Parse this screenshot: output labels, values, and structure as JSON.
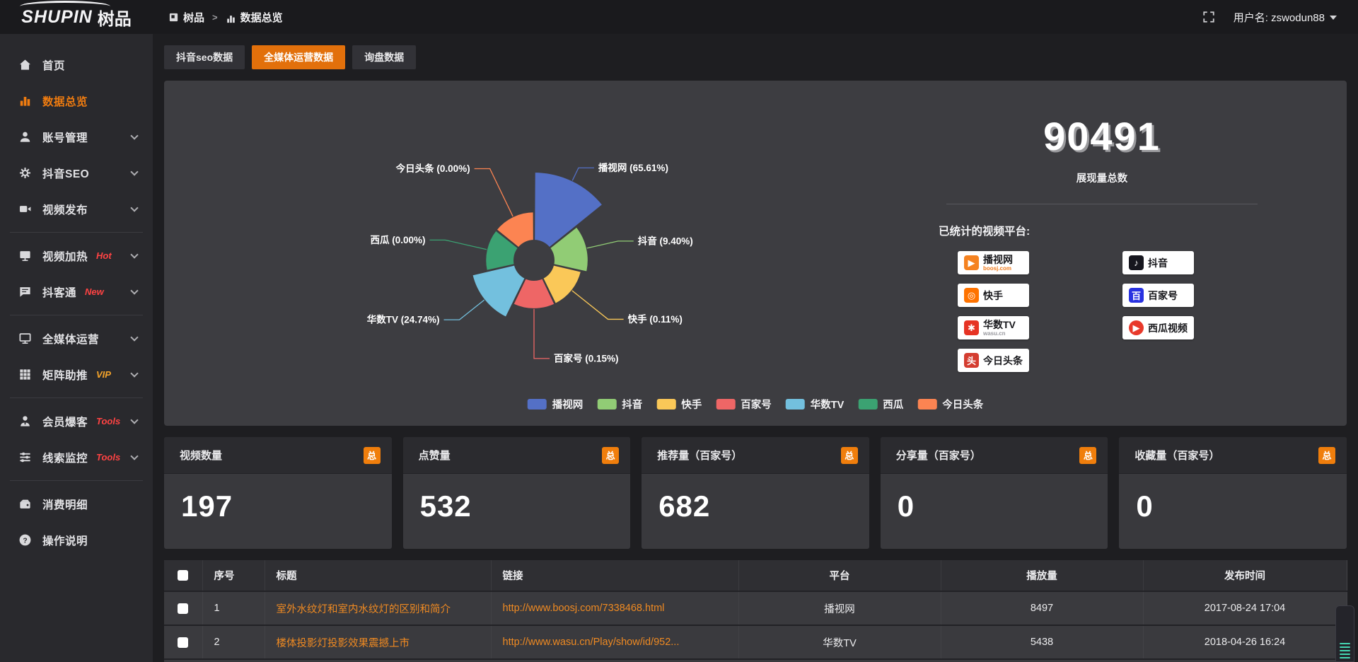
{
  "accent_color": "#e2700b",
  "brand": {
    "logo_text": "SHUPIN",
    "logo_cn": "树品"
  },
  "topbar": {
    "breadcrumb": [
      {
        "label": "树品",
        "icon": "app-icon"
      },
      {
        "label": "数据总览",
        "icon": "bar-chart-icon"
      }
    ],
    "separator": ">",
    "username": "用户名: zswodun88"
  },
  "sidebar": {
    "items": [
      {
        "label": "首页",
        "icon": "home-icon"
      },
      {
        "label": "数据总览",
        "icon": "bar-chart-icon",
        "active": true
      },
      {
        "label": "账号管理",
        "icon": "user-icon",
        "chevron": true
      },
      {
        "label": "抖音SEO",
        "icon": "gear-icon",
        "chevron": true
      },
      {
        "label": "视频发布",
        "icon": "video-icon",
        "chevron": true
      },
      {
        "divider": true
      },
      {
        "label": "视频加热",
        "icon": "screen-play-icon",
        "tag": "Hot",
        "tag_color": "#ff4343",
        "chevron": true
      },
      {
        "label": "抖客通",
        "icon": "chat-icon",
        "tag": "New",
        "tag_color": "#ff4343",
        "chevron": true
      },
      {
        "divider": true
      },
      {
        "label": "全媒体运营",
        "icon": "monitor-icon",
        "chevron": true
      },
      {
        "label": "矩阵助推",
        "icon": "grid-icon",
        "tag": "VIP",
        "tag_color": "#f5a42a",
        "chevron": true
      },
      {
        "divider": true
      },
      {
        "label": "会员爆客",
        "icon": "member-icon",
        "tag": "Tools",
        "tag_color": "#ff4343",
        "chevron": true
      },
      {
        "label": "线索监控",
        "icon": "sliders-icon",
        "tag": "Tools",
        "tag_color": "#ff4343",
        "chevron": true
      },
      {
        "divider": true
      },
      {
        "label": "消费明细",
        "icon": "wallet-icon"
      },
      {
        "label": "操作说明",
        "icon": "help-icon"
      }
    ]
  },
  "tabs": [
    {
      "label": "抖音seo数据",
      "active": false
    },
    {
      "label": "全媒体运营数据",
      "active": true
    },
    {
      "label": "询盘数据",
      "active": false
    }
  ],
  "chart_data": {
    "type": "pie",
    "variant": "nightingale-rose-donut",
    "categories": [
      "播视网",
      "抖音",
      "快手",
      "百家号",
      "华数TV",
      "西瓜",
      "今日头条"
    ],
    "values_percent": [
      65.61,
      9.4,
      0.11,
      0.15,
      24.74,
      0.0,
      0.0
    ],
    "labels": [
      "播视网 (65.61%)",
      "抖音 (9.40%)",
      "快手 (0.11%)",
      "百家号 (0.15%)",
      "华数TV (24.74%)",
      "西瓜 (0.00%)",
      "今日头条 (0.00%)"
    ],
    "colors": [
      "#5470c6",
      "#91cc75",
      "#fac858",
      "#ee6666",
      "#73c0de",
      "#3ba272",
      "#fc8452"
    ],
    "legend_position": "bottom",
    "title": ""
  },
  "summary": {
    "total_value": "90491",
    "total_label": "展现量总数",
    "platforms_title": "已统计的视频平台:",
    "platforms": [
      {
        "name": "播视网",
        "subtext": "boosj.com",
        "subtext_color": "#f07c1e",
        "icon": "boosj-logo",
        "glyph": "▶",
        "bg": "#f58220",
        "fg": "#fff",
        "round": false
      },
      {
        "name": "快手",
        "icon": "kuaishou-logo",
        "glyph": "◎",
        "bg": "#ff7300",
        "fg": "#fff",
        "round": false
      },
      {
        "name": "华数TV",
        "subtext": "wasu.cn",
        "subtext_color": "#9a9aa0",
        "icon": "wasu-logo",
        "glyph": "✱",
        "bg": "#e63324",
        "fg": "#fff",
        "round": false
      },
      {
        "name": "今日头条",
        "icon": "toutiao-logo",
        "glyph": "头",
        "bg": "#d43d30",
        "fg": "#fff",
        "round": false
      },
      {
        "name": "抖音",
        "icon": "douyin-logo",
        "glyph": "♪",
        "bg": "#16161e",
        "fg": "#fff",
        "round": false
      },
      {
        "name": "百家号",
        "icon": "baijiahao-logo",
        "glyph": "百",
        "bg": "#2932e1",
        "fg": "#fff",
        "round": false
      },
      {
        "name": "西瓜视频",
        "icon": "xigua-logo",
        "glyph": "▶",
        "bg": "#e8392b",
        "fg": "#fff",
        "round": true
      }
    ]
  },
  "stat_cards": [
    {
      "label": "视频数量",
      "badge": "总",
      "value": "197"
    },
    {
      "label": "点赞量",
      "badge": "总",
      "value": "532"
    },
    {
      "label": "推荐量（百家号）",
      "badge": "总",
      "value": "682"
    },
    {
      "label": "分享量（百家号）",
      "badge": "总",
      "value": "0"
    },
    {
      "label": "收藏量（百家号）",
      "badge": "总",
      "value": "0"
    }
  ],
  "table": {
    "columns": [
      "",
      "序号",
      "标题",
      "链接",
      "平台",
      "播放量",
      "发布时间"
    ],
    "rows": [
      {
        "index": "1",
        "title": "室外水纹灯和室内水纹灯的区别和简介",
        "link": "http://www.boosj.com/7338468.html",
        "platform": "播视网",
        "plays": "8497",
        "published": "2017-08-24 17:04"
      },
      {
        "index": "2",
        "title": "楼体投影灯投影效果震撼上市",
        "link": "http://www.wasu.cn/Play/show/id/952...",
        "platform": "华数TV",
        "plays": "5438",
        "published": "2018-04-26 16:24"
      }
    ]
  }
}
